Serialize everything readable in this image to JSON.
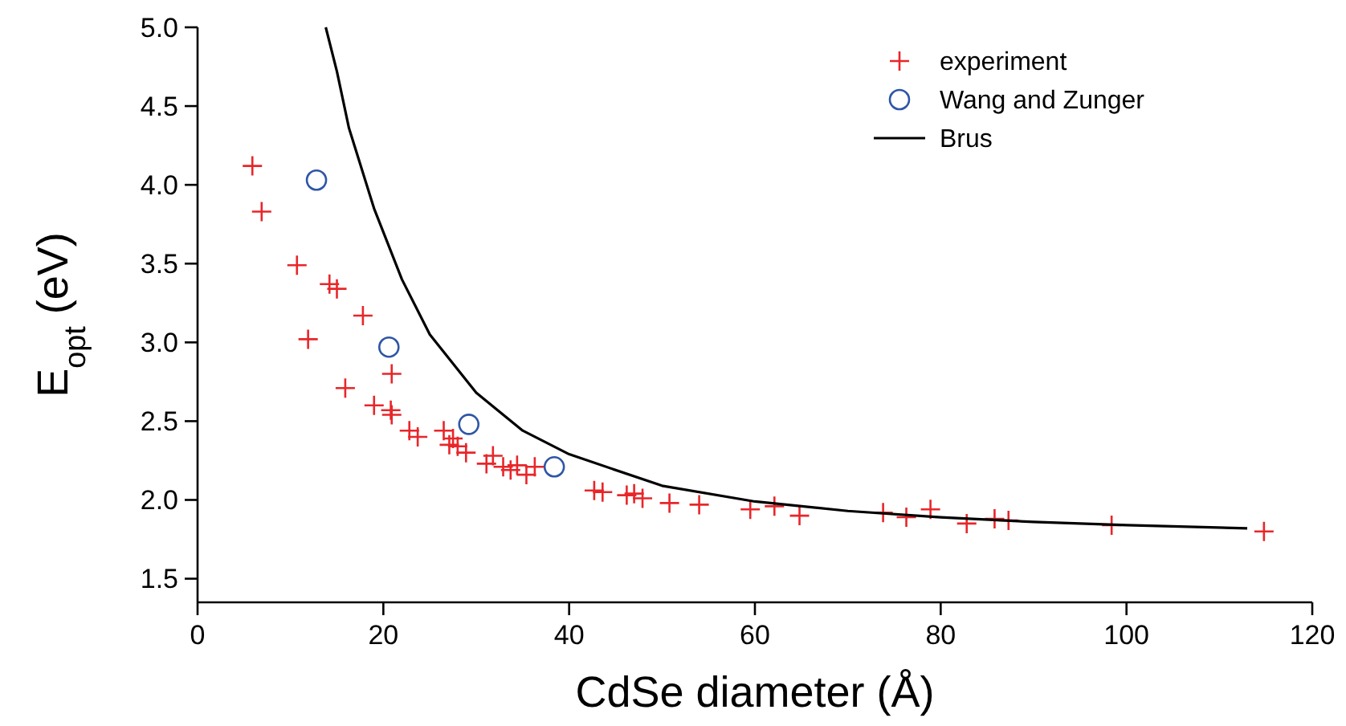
{
  "chart_data": {
    "type": "scatter",
    "xlabel": "CdSe diameter (Å)",
    "ylabel": "E$_{opt}$ (eV)",
    "xlim": [
      0,
      120
    ],
    "xticks": [
      0,
      20,
      40,
      60,
      80,
      100,
      120
    ],
    "ylim": [
      1.35,
      5.0
    ],
    "yticks": [
      {
        "value": 1.5,
        "label": "1.5"
      },
      {
        "value": 2,
        "label": "2.0"
      },
      {
        "value": 2.5,
        "label": "2.5"
      },
      {
        "value": 3,
        "label": "3.0"
      },
      {
        "value": 3.5,
        "label": "3.5"
      },
      {
        "value": 4,
        "label": "4.0"
      },
      {
        "value": 4.5,
        "label": "4.5"
      },
      {
        "value": 5,
        "label": "5.0"
      }
    ],
    "grid": false,
    "legend": "top right",
    "series": [
      {
        "name": "experiment",
        "marker": "cross",
        "color": "#e8262a",
        "x": [
          5.9,
          6.9,
          10.7,
          14.2,
          15.0,
          17.8,
          11.9,
          20.9,
          15.9,
          19.0,
          20.8,
          20.9,
          22.8,
          23.7,
          26.5,
          27.1,
          27.5,
          28.0,
          28.9,
          31.1,
          31.8,
          32.9,
          33.7,
          34.4,
          35.4,
          36.3,
          42.7,
          43.6,
          46.2,
          47.0,
          47.9,
          50.8,
          54.0,
          59.5,
          62.1,
          64.8,
          73.8,
          76.3,
          78.9,
          82.8,
          85.8,
          87.3,
          98.4,
          114.8
        ],
        "values": [
          4.12,
          3.83,
          3.49,
          3.37,
          3.34,
          3.17,
          3.02,
          2.8,
          2.71,
          2.6,
          2.57,
          2.54,
          2.44,
          2.4,
          2.44,
          2.35,
          2.39,
          2.34,
          2.3,
          2.23,
          2.28,
          2.21,
          2.19,
          2.22,
          2.16,
          2.21,
          2.06,
          2.05,
          2.03,
          2.04,
          2.01,
          1.98,
          1.97,
          1.94,
          1.96,
          1.9,
          1.92,
          1.89,
          1.94,
          1.85,
          1.88,
          1.87,
          1.84,
          1.8
        ]
      },
      {
        "name": "Wang and Zunger",
        "marker": "circle",
        "color": "#2f56a6",
        "x": [
          12.8,
          20.6,
          29.2,
          38.4
        ],
        "values": [
          4.03,
          2.97,
          2.48,
          2.21
        ]
      },
      {
        "name": "Brus",
        "type": "line",
        "marker": "none",
        "color": "#000000",
        "x": [
          13.8,
          15,
          16.3,
          19,
          22,
          25,
          30,
          35,
          40,
          50,
          60,
          70,
          80,
          90,
          100,
          113
        ],
        "values": [
          5.0,
          4.72,
          4.36,
          3.85,
          3.4,
          3.05,
          2.68,
          2.44,
          2.29,
          2.09,
          1.99,
          1.93,
          1.89,
          1.86,
          1.84,
          1.82
        ]
      }
    ]
  }
}
